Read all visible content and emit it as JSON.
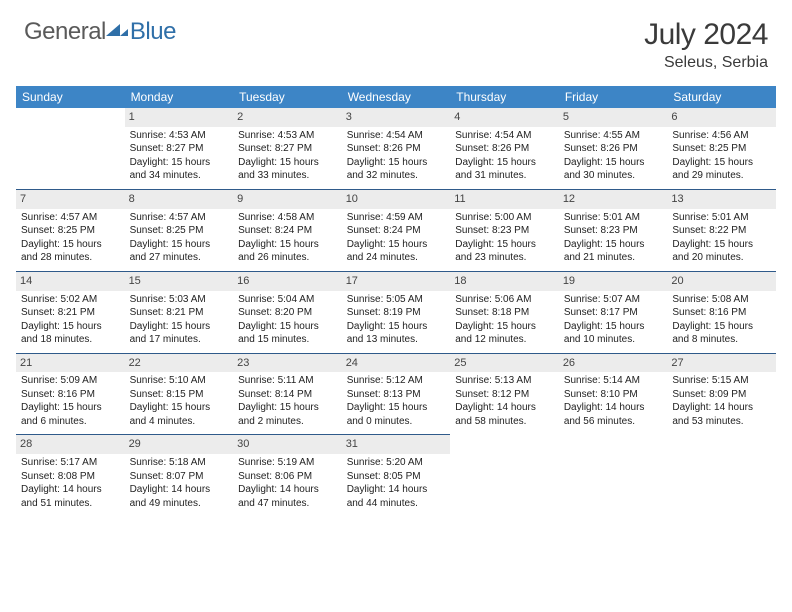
{
  "logo": {
    "text1": "General",
    "text2": "Blue"
  },
  "title": "July 2024",
  "location": "Seleus, Serbia",
  "colors": {
    "header_bg": "#3d85c6",
    "header_text": "#ffffff",
    "daynum_bg": "#ececec",
    "row_border": "#2f5a8a",
    "logo_gray": "#5a5a5a",
    "logo_blue": "#2f6fa8"
  },
  "dayHeaders": [
    "Sunday",
    "Monday",
    "Tuesday",
    "Wednesday",
    "Thursday",
    "Friday",
    "Saturday"
  ],
  "weeks": [
    [
      {
        "n": "",
        "sunrise": "",
        "sunset": "",
        "daylight": ""
      },
      {
        "n": "1",
        "sunrise": "Sunrise: 4:53 AM",
        "sunset": "Sunset: 8:27 PM",
        "daylight": "Daylight: 15 hours and 34 minutes."
      },
      {
        "n": "2",
        "sunrise": "Sunrise: 4:53 AM",
        "sunset": "Sunset: 8:27 PM",
        "daylight": "Daylight: 15 hours and 33 minutes."
      },
      {
        "n": "3",
        "sunrise": "Sunrise: 4:54 AM",
        "sunset": "Sunset: 8:26 PM",
        "daylight": "Daylight: 15 hours and 32 minutes."
      },
      {
        "n": "4",
        "sunrise": "Sunrise: 4:54 AM",
        "sunset": "Sunset: 8:26 PM",
        "daylight": "Daylight: 15 hours and 31 minutes."
      },
      {
        "n": "5",
        "sunrise": "Sunrise: 4:55 AM",
        "sunset": "Sunset: 8:26 PM",
        "daylight": "Daylight: 15 hours and 30 minutes."
      },
      {
        "n": "6",
        "sunrise": "Sunrise: 4:56 AM",
        "sunset": "Sunset: 8:25 PM",
        "daylight": "Daylight: 15 hours and 29 minutes."
      }
    ],
    [
      {
        "n": "7",
        "sunrise": "Sunrise: 4:57 AM",
        "sunset": "Sunset: 8:25 PM",
        "daylight": "Daylight: 15 hours and 28 minutes."
      },
      {
        "n": "8",
        "sunrise": "Sunrise: 4:57 AM",
        "sunset": "Sunset: 8:25 PM",
        "daylight": "Daylight: 15 hours and 27 minutes."
      },
      {
        "n": "9",
        "sunrise": "Sunrise: 4:58 AM",
        "sunset": "Sunset: 8:24 PM",
        "daylight": "Daylight: 15 hours and 26 minutes."
      },
      {
        "n": "10",
        "sunrise": "Sunrise: 4:59 AM",
        "sunset": "Sunset: 8:24 PM",
        "daylight": "Daylight: 15 hours and 24 minutes."
      },
      {
        "n": "11",
        "sunrise": "Sunrise: 5:00 AM",
        "sunset": "Sunset: 8:23 PM",
        "daylight": "Daylight: 15 hours and 23 minutes."
      },
      {
        "n": "12",
        "sunrise": "Sunrise: 5:01 AM",
        "sunset": "Sunset: 8:23 PM",
        "daylight": "Daylight: 15 hours and 21 minutes."
      },
      {
        "n": "13",
        "sunrise": "Sunrise: 5:01 AM",
        "sunset": "Sunset: 8:22 PM",
        "daylight": "Daylight: 15 hours and 20 minutes."
      }
    ],
    [
      {
        "n": "14",
        "sunrise": "Sunrise: 5:02 AM",
        "sunset": "Sunset: 8:21 PM",
        "daylight": "Daylight: 15 hours and 18 minutes."
      },
      {
        "n": "15",
        "sunrise": "Sunrise: 5:03 AM",
        "sunset": "Sunset: 8:21 PM",
        "daylight": "Daylight: 15 hours and 17 minutes."
      },
      {
        "n": "16",
        "sunrise": "Sunrise: 5:04 AM",
        "sunset": "Sunset: 8:20 PM",
        "daylight": "Daylight: 15 hours and 15 minutes."
      },
      {
        "n": "17",
        "sunrise": "Sunrise: 5:05 AM",
        "sunset": "Sunset: 8:19 PM",
        "daylight": "Daylight: 15 hours and 13 minutes."
      },
      {
        "n": "18",
        "sunrise": "Sunrise: 5:06 AM",
        "sunset": "Sunset: 8:18 PM",
        "daylight": "Daylight: 15 hours and 12 minutes."
      },
      {
        "n": "19",
        "sunrise": "Sunrise: 5:07 AM",
        "sunset": "Sunset: 8:17 PM",
        "daylight": "Daylight: 15 hours and 10 minutes."
      },
      {
        "n": "20",
        "sunrise": "Sunrise: 5:08 AM",
        "sunset": "Sunset: 8:16 PM",
        "daylight": "Daylight: 15 hours and 8 minutes."
      }
    ],
    [
      {
        "n": "21",
        "sunrise": "Sunrise: 5:09 AM",
        "sunset": "Sunset: 8:16 PM",
        "daylight": "Daylight: 15 hours and 6 minutes."
      },
      {
        "n": "22",
        "sunrise": "Sunrise: 5:10 AM",
        "sunset": "Sunset: 8:15 PM",
        "daylight": "Daylight: 15 hours and 4 minutes."
      },
      {
        "n": "23",
        "sunrise": "Sunrise: 5:11 AM",
        "sunset": "Sunset: 8:14 PM",
        "daylight": "Daylight: 15 hours and 2 minutes."
      },
      {
        "n": "24",
        "sunrise": "Sunrise: 5:12 AM",
        "sunset": "Sunset: 8:13 PM",
        "daylight": "Daylight: 15 hours and 0 minutes."
      },
      {
        "n": "25",
        "sunrise": "Sunrise: 5:13 AM",
        "sunset": "Sunset: 8:12 PM",
        "daylight": "Daylight: 14 hours and 58 minutes."
      },
      {
        "n": "26",
        "sunrise": "Sunrise: 5:14 AM",
        "sunset": "Sunset: 8:10 PM",
        "daylight": "Daylight: 14 hours and 56 minutes."
      },
      {
        "n": "27",
        "sunrise": "Sunrise: 5:15 AM",
        "sunset": "Sunset: 8:09 PM",
        "daylight": "Daylight: 14 hours and 53 minutes."
      }
    ],
    [
      {
        "n": "28",
        "sunrise": "Sunrise: 5:17 AM",
        "sunset": "Sunset: 8:08 PM",
        "daylight": "Daylight: 14 hours and 51 minutes."
      },
      {
        "n": "29",
        "sunrise": "Sunrise: 5:18 AM",
        "sunset": "Sunset: 8:07 PM",
        "daylight": "Daylight: 14 hours and 49 minutes."
      },
      {
        "n": "30",
        "sunrise": "Sunrise: 5:19 AM",
        "sunset": "Sunset: 8:06 PM",
        "daylight": "Daylight: 14 hours and 47 minutes."
      },
      {
        "n": "31",
        "sunrise": "Sunrise: 5:20 AM",
        "sunset": "Sunset: 8:05 PM",
        "daylight": "Daylight: 14 hours and 44 minutes."
      },
      {
        "n": "",
        "sunrise": "",
        "sunset": "",
        "daylight": ""
      },
      {
        "n": "",
        "sunrise": "",
        "sunset": "",
        "daylight": ""
      },
      {
        "n": "",
        "sunrise": "",
        "sunset": "",
        "daylight": ""
      }
    ]
  ]
}
